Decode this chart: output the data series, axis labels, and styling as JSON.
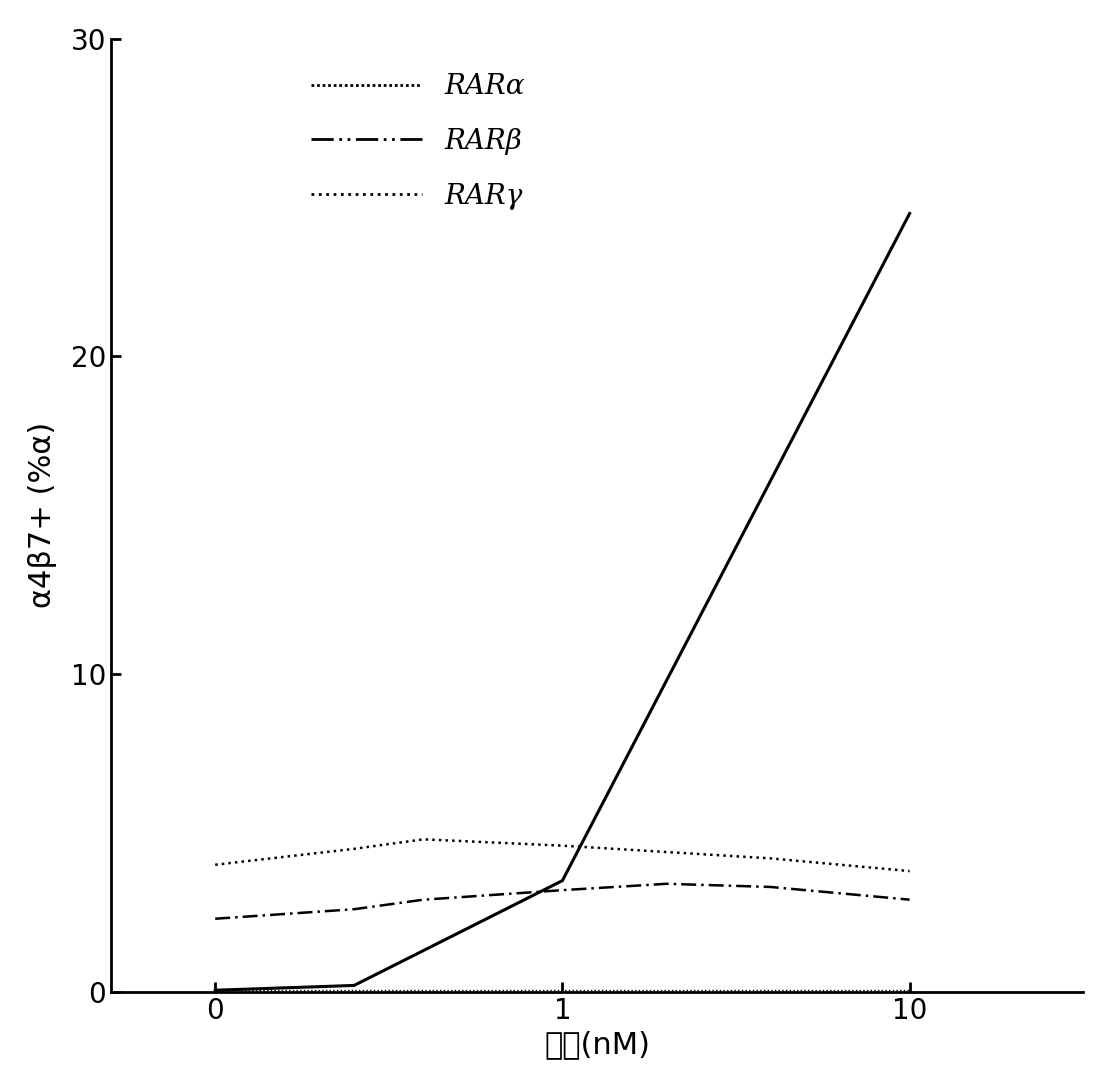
{
  "x_positions": [
    0,
    1,
    2
  ],
  "x_tick_labels": [
    "0",
    "1",
    "10"
  ],
  "xlim": [
    -0.3,
    2.5
  ],
  "ylim": [
    0,
    30
  ],
  "yticks": [
    0,
    10,
    20,
    30
  ],
  "ylabel": "α4β7+ (%α)",
  "xlabel": "浓度(nM)",
  "line_color": "#000000",
  "rar_alpha": {
    "x": [
      0,
      0.4,
      1.0,
      2.0
    ],
    "y": [
      0.05,
      0.2,
      3.5,
      24.5
    ],
    "linestyle": "solid",
    "linewidth": 2.2,
    "label": "RARα"
  },
  "rar_beta": {
    "x": [
      0,
      0.4,
      0.6,
      1.0,
      1.3,
      1.6,
      1.8,
      2.0
    ],
    "y": [
      2.3,
      2.6,
      2.9,
      3.2,
      3.4,
      3.3,
      3.1,
      2.9
    ],
    "linestyle": "dashed",
    "dashes": [
      6,
      2,
      1,
      2
    ],
    "linewidth": 1.8,
    "label": "RARβ"
  },
  "rar_gamma": {
    "x": [
      0,
      0.4,
      0.6,
      1.0,
      1.3,
      1.6,
      1.8,
      2.0
    ],
    "y": [
      4.0,
      4.5,
      4.8,
      4.6,
      4.4,
      4.2,
      4.0,
      3.8
    ],
    "linestyle": "dotted",
    "linewidth": 1.8,
    "label": "RARγ"
  },
  "rar_delta": {
    "x": [
      0,
      0.4,
      0.6,
      1.0,
      1.3,
      1.6,
      1.8,
      2.0
    ],
    "y": [
      0.05,
      0.05,
      0.05,
      0.05,
      0.05,
      0.05,
      0.05,
      0.05
    ],
    "linestyle": "dotted",
    "linewidth": 1.0
  },
  "legend_fontsize": 20,
  "axis_fontsize": 22,
  "tick_fontsize": 20,
  "background_color": "#ffffff"
}
